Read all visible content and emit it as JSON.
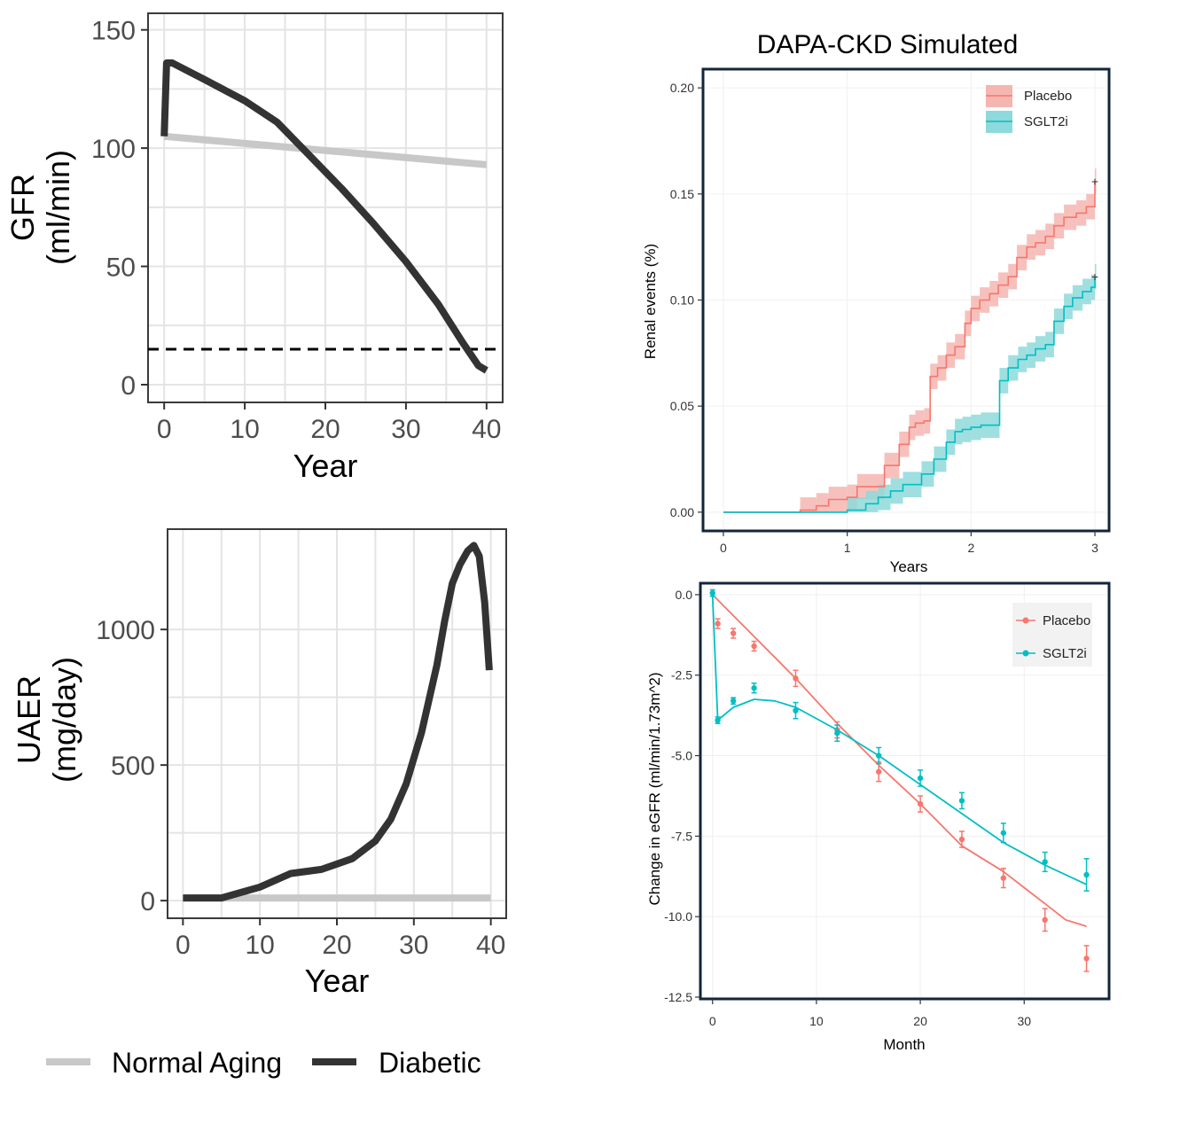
{
  "colors": {
    "normal_aging": "#c8c8c8",
    "diabetic": "#333333",
    "placebo": "#f8766d",
    "placebo_band": "#f4b6b0",
    "sglt2i": "#00bfc4",
    "sglt2i_band": "#8ed9db",
    "frame_dark": "#12263a"
  },
  "legend_bottom": {
    "items": [
      "Normal Aging",
      "Diabetic"
    ]
  },
  "chart_data": [
    {
      "id": "gfr",
      "type": "line",
      "title": "",
      "xlabel": "Year",
      "ylabel": [
        "GFR",
        "(ml/min)"
      ],
      "xlim": [
        -2,
        42
      ],
      "ylim": [
        -7.5,
        157
      ],
      "xticks": [
        0,
        10,
        20,
        30,
        40
      ],
      "yticks": [
        0,
        50,
        100,
        150
      ],
      "threshold": 15,
      "series": [
        {
          "name": "Normal Aging",
          "x": [
            0,
            40
          ],
          "y": [
            105,
            93
          ]
        },
        {
          "name": "Diabetic",
          "x": [
            0,
            0.3,
            1,
            5,
            10,
            14,
            18,
            22,
            26,
            30,
            34,
            37,
            39,
            40
          ],
          "y": [
            105,
            136,
            136,
            129,
            120,
            111,
            97,
            83,
            68,
            52,
            34,
            18,
            8,
            6
          ]
        }
      ]
    },
    {
      "id": "uaer",
      "type": "line",
      "title": "",
      "xlabel": "Year",
      "ylabel": [
        "UAER",
        "(mg/day)"
      ],
      "xlim": [
        -2,
        42
      ],
      "ylim": [
        -65,
        1370
      ],
      "xticks": [
        0,
        10,
        20,
        30,
        40
      ],
      "yticks": [
        0,
        500,
        1000
      ],
      "series": [
        {
          "name": "Normal Aging",
          "x": [
            0,
            40
          ],
          "y": [
            10,
            10
          ]
        },
        {
          "name": "Diabetic",
          "x": [
            0,
            5,
            10,
            14,
            18,
            22,
            25,
            27,
            29,
            31,
            33,
            34,
            35,
            36,
            37,
            37.8,
            38.5,
            39.2,
            39.8
          ],
          "y": [
            10,
            10,
            50,
            100,
            115,
            155,
            220,
            300,
            430,
            620,
            870,
            1030,
            1170,
            1240,
            1290,
            1310,
            1270,
            1100,
            850
          ]
        }
      ]
    },
    {
      "id": "dapa",
      "type": "line",
      "title": "DAPA-CKD Simulated",
      "xlabel": "Years",
      "ylabel": "Renal events (%)",
      "xlim": [
        -0.15,
        3.1
      ],
      "ylim": [
        -0.008,
        0.208
      ],
      "xticks": [
        0,
        1,
        2,
        3
      ],
      "yticks": [
        0.0,
        0.05,
        0.1,
        0.15,
        0.2
      ],
      "ytick_labels": [
        "0.00",
        "0.05",
        "0.10",
        "0.15",
        "0.20"
      ],
      "legend": [
        "Placebo",
        "SGLT2i"
      ],
      "band_halfwidth": 0.006,
      "series": [
        {
          "name": "Placebo",
          "x": [
            0,
            0.62,
            0.75,
            0.85,
            1.0,
            1.08,
            1.3,
            1.42,
            1.5,
            1.55,
            1.62,
            1.67,
            1.73,
            1.8,
            1.87,
            1.95,
            2.0,
            2.07,
            2.15,
            2.22,
            2.3,
            2.37,
            2.45,
            2.52,
            2.6,
            2.67,
            2.75,
            2.85,
            2.93,
            3.0
          ],
          "y": [
            0,
            0.001,
            0.003,
            0.006,
            0.007,
            0.012,
            0.022,
            0.032,
            0.04,
            0.042,
            0.043,
            0.064,
            0.068,
            0.074,
            0.078,
            0.089,
            0.096,
            0.1,
            0.103,
            0.107,
            0.111,
            0.12,
            0.125,
            0.127,
            0.13,
            0.135,
            0.139,
            0.141,
            0.144,
            0.156
          ]
        },
        {
          "name": "SGLT2i",
          "x": [
            0,
            1.0,
            1.15,
            1.25,
            1.35,
            1.45,
            1.6,
            1.7,
            1.8,
            1.87,
            1.93,
            2.0,
            2.08,
            2.23,
            2.3,
            2.38,
            2.45,
            2.52,
            2.6,
            2.67,
            2.75,
            2.82,
            2.9,
            2.97,
            3.0
          ],
          "y": [
            0,
            0.001,
            0.004,
            0.007,
            0.01,
            0.013,
            0.018,
            0.025,
            0.033,
            0.038,
            0.039,
            0.04,
            0.041,
            0.062,
            0.068,
            0.072,
            0.074,
            0.077,
            0.079,
            0.09,
            0.097,
            0.101,
            0.104,
            0.106,
            0.111
          ]
        }
      ]
    },
    {
      "id": "egfr",
      "type": "line",
      "title": "",
      "xlabel": "Month",
      "ylabel": "Change in eGFR (ml/min/1.73m^2)",
      "xlim": [
        -1,
        38
      ],
      "ylim": [
        -12.5,
        0.3
      ],
      "xticks": [
        0,
        10,
        20,
        30
      ],
      "yticks": [
        0.0,
        -2.5,
        -5.0,
        -7.5,
        -10.0,
        -12.5
      ],
      "ytick_labels": [
        "0.0",
        "-2.5",
        "-5.0",
        "-7.5",
        "-10.0",
        "-12.5"
      ],
      "legend": [
        "Placebo",
        "SGLT2i"
      ],
      "series": [
        {
          "name": "Placebo",
          "points_x": [
            0.5,
            2,
            4,
            8,
            12,
            16,
            20,
            24,
            28,
            32,
            36
          ],
          "points_y": [
            -0.9,
            -1.2,
            -1.6,
            -2.6,
            -4.2,
            -5.5,
            -6.5,
            -7.6,
            -8.8,
            -10.1,
            -11.3
          ],
          "err": [
            0.15,
            0.15,
            0.15,
            0.25,
            0.25,
            0.3,
            0.25,
            0.25,
            0.3,
            0.35,
            0.4
          ],
          "fit_x": [
            0,
            4,
            8,
            12,
            16,
            20,
            24,
            28,
            30,
            32,
            34,
            36
          ],
          "fit_y": [
            0,
            -1.3,
            -2.6,
            -4.0,
            -5.3,
            -6.5,
            -7.8,
            -8.6,
            -9.1,
            -9.6,
            -10.1,
            -10.3
          ]
        },
        {
          "name": "SGLT2i",
          "points_x": [
            0,
            0.5,
            2,
            4,
            8,
            12,
            16,
            20,
            24,
            28,
            32,
            36
          ],
          "points_y": [
            0.05,
            -3.9,
            -3.3,
            -2.9,
            -3.6,
            -4.3,
            -5.0,
            -5.7,
            -6.4,
            -7.4,
            -8.3,
            -8.7
          ],
          "err": [
            0.1,
            0.1,
            0.1,
            0.15,
            0.25,
            0.25,
            0.25,
            0.25,
            0.25,
            0.3,
            0.3,
            0.5
          ],
          "fit_x": [
            0,
            0.5,
            2,
            4,
            6,
            8,
            12,
            16,
            20,
            24,
            28,
            32,
            36
          ],
          "fit_y": [
            0,
            -3.9,
            -3.5,
            -3.25,
            -3.3,
            -3.5,
            -4.2,
            -5.0,
            -5.9,
            -6.8,
            -7.7,
            -8.4,
            -9.0
          ]
        }
      ]
    }
  ]
}
